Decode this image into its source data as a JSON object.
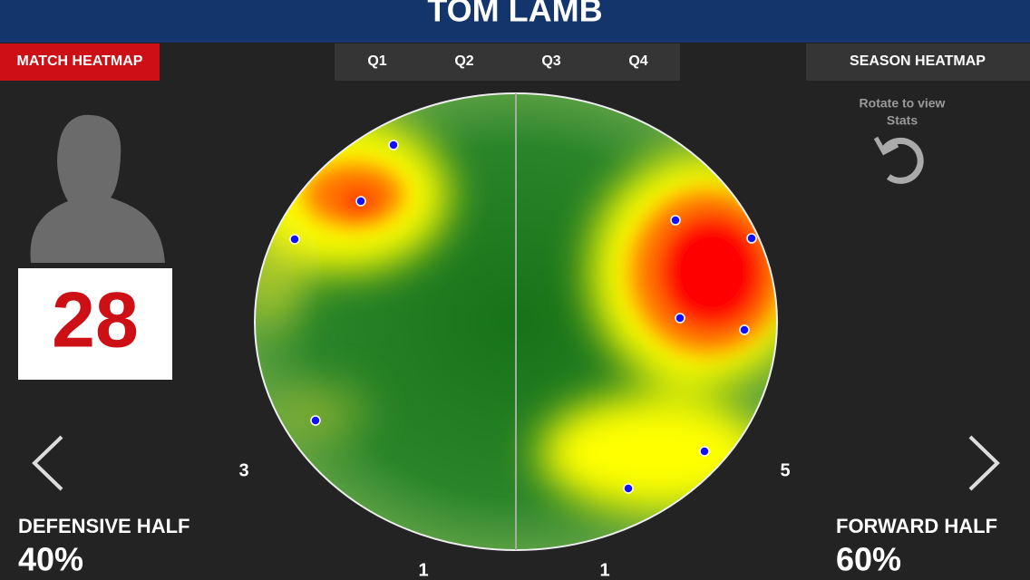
{
  "header": {
    "title": "TOM LAMB"
  },
  "tabs": {
    "match": "MATCH HEATMAP",
    "quarters": [
      "Q1",
      "Q2",
      "Q3",
      "Q4"
    ],
    "season": "SEASON HEATMAP"
  },
  "rotate_hint": [
    "Rotate to view",
    "Stats"
  ],
  "player": {
    "number": "28"
  },
  "counts": {
    "left": "3",
    "right": "5",
    "bottom_left": "1",
    "bottom_right": "1"
  },
  "defensive": {
    "label": "DEFENSIVE HALF",
    "value": "40%"
  },
  "forward": {
    "label": "FORWARD HALF",
    "value": "60%"
  }
}
